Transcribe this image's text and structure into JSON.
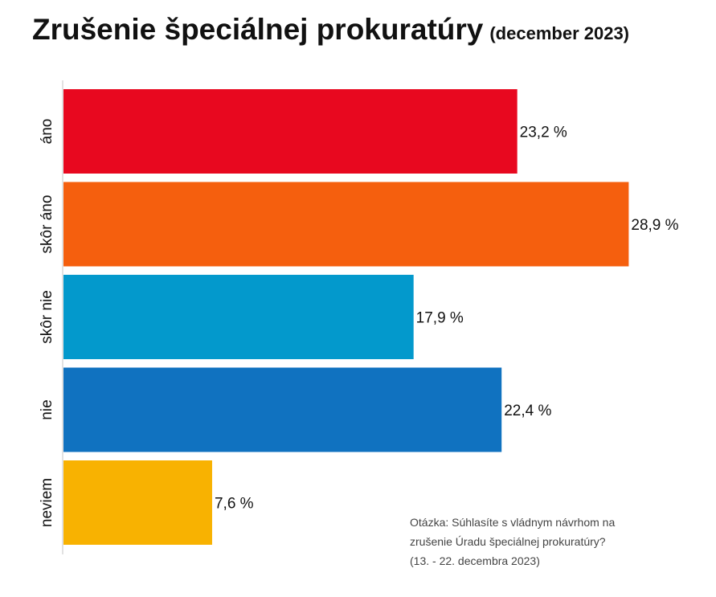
{
  "title": "Zrušenie špeciálnej prokuratúry",
  "subtitle": "(december 2023)",
  "note": {
    "lines": [
      "Otázka: Súhlasíte s vládnym návrhom na",
      "zrušenie Úradu špeciálnej prokuratúry?",
      "(13. - 22. decembra 2023)"
    ]
  },
  "chart_data": {
    "type": "bar",
    "orientation": "horizontal",
    "title": "Zrušenie špeciálnej prokuratúry",
    "subtitle": "(december 2023)",
    "categories": [
      "áno",
      "skôr áno",
      "skôr nie",
      "nie",
      "neviem"
    ],
    "values": [
      23.2,
      28.9,
      17.9,
      22.4,
      7.6
    ],
    "value_labels": [
      "23,2 %",
      "28,9 %",
      "17,9 %",
      "22,4 %",
      "7,6 %"
    ],
    "colors": [
      "#e8081f",
      "#f55f0e",
      "#0399cc",
      "#1072c0",
      "#f8b201"
    ],
    "xlim": [
      0,
      29.5
    ],
    "grid": false,
    "legend": "none"
  }
}
